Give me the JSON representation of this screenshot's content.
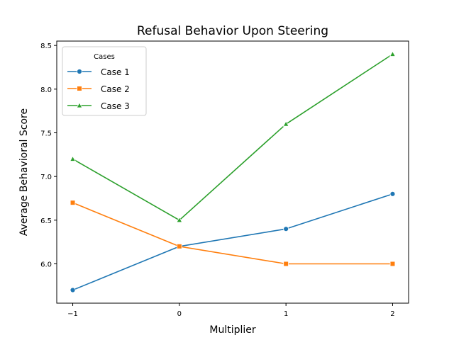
{
  "chart_data": {
    "type": "line",
    "title": "Refusal Behavior Upon Steering",
    "xlabel": "Multiplier",
    "ylabel": "Average Behavioral Score",
    "x": [
      -1,
      0,
      1,
      2
    ],
    "x_tick_labels": [
      "−1",
      "0",
      "1",
      "2"
    ],
    "xlim": [
      -1.15,
      2.15
    ],
    "ylim": [
      5.55,
      8.55
    ],
    "y_ticks": [
      6.0,
      6.5,
      7.0,
      7.5,
      8.0,
      8.5
    ],
    "y_tick_labels": [
      "6.0",
      "6.5",
      "7.0",
      "7.5",
      "8.0",
      "8.5"
    ],
    "grid": false,
    "legend": {
      "title": "Cases",
      "position": "top-left"
    },
    "series": [
      {
        "name": "Case 1",
        "values": [
          5.7,
          6.2,
          6.4,
          6.8
        ],
        "color": "#1f77b4",
        "marker": "circle"
      },
      {
        "name": "Case 2",
        "values": [
          6.7,
          6.2,
          6.0,
          6.0
        ],
        "color": "#ff7f0e",
        "marker": "square"
      },
      {
        "name": "Case 3",
        "values": [
          7.2,
          6.5,
          7.6,
          8.4
        ],
        "color": "#2ca02c",
        "marker": "triangle"
      }
    ]
  }
}
